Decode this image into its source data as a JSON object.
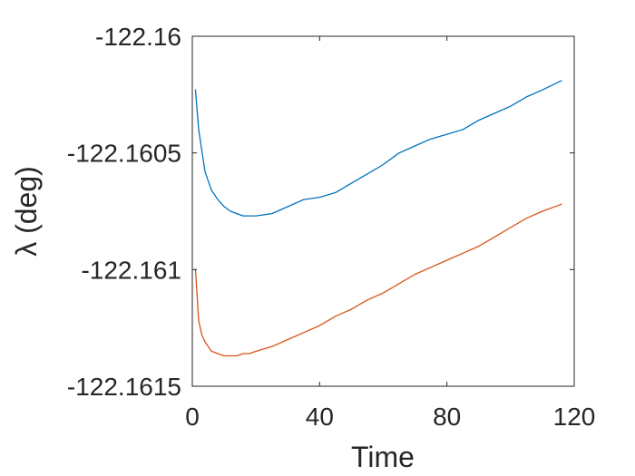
{
  "chart_data": {
    "type": "line",
    "title": "",
    "xlabel": "Time",
    "ylabel": "λ (deg)",
    "xlim": [
      0,
      120
    ],
    "ylim": [
      -122.1615,
      -122.16
    ],
    "x_ticks": [
      0,
      40,
      80,
      120
    ],
    "x_tick_labels": [
      "0",
      "40",
      "80",
      "120"
    ],
    "y_ticks": [
      -122.16,
      -122.1605,
      -122.161,
      -122.1615
    ],
    "y_tick_labels": [
      "-122.16",
      "-122.1605",
      "-122.161",
      "-122.1615"
    ],
    "grid": false,
    "legend": "none",
    "series": [
      {
        "color": "#0072BD",
        "x": [
          1,
          2,
          4,
          6,
          8,
          10,
          12,
          14,
          16,
          18,
          20,
          25,
          30,
          35,
          40,
          45,
          50,
          55,
          60,
          65,
          70,
          75,
          80,
          85,
          90,
          95,
          100,
          105,
          110,
          116
        ],
        "y": [
          -122.16023,
          -122.1604,
          -122.16058,
          -122.16066,
          -122.1607,
          -122.16073,
          -122.16075,
          -122.16076,
          -122.16077,
          -122.16077,
          -122.16077,
          -122.16076,
          -122.16073,
          -122.1607,
          -122.16069,
          -122.16067,
          -122.16063,
          -122.16059,
          -122.16055,
          -122.1605,
          -122.16047,
          -122.16044,
          -122.16042,
          -122.1604,
          -122.16036,
          -122.16033,
          -122.1603,
          -122.16026,
          -122.16023,
          -122.16019
        ]
      },
      {
        "color": "#D95319",
        "x": [
          1,
          2,
          3,
          4,
          6,
          8,
          10,
          12,
          14,
          16,
          18,
          20,
          25,
          30,
          35,
          40,
          45,
          50,
          55,
          60,
          65,
          70,
          75,
          80,
          85,
          90,
          95,
          100,
          105,
          110,
          116
        ],
        "y": [
          -122.161,
          -122.16122,
          -122.16128,
          -122.16131,
          -122.16135,
          -122.16136,
          -122.16137,
          -122.16137,
          -122.16137,
          -122.16136,
          -122.16136,
          -122.16135,
          -122.16133,
          -122.1613,
          -122.16127,
          -122.16124,
          -122.1612,
          -122.16117,
          -122.16113,
          -122.1611,
          -122.16106,
          -122.16102,
          -122.16099,
          -122.16096,
          -122.16093,
          -122.1609,
          -122.16086,
          -122.16082,
          -122.16078,
          -122.16075,
          -122.16072
        ]
      }
    ]
  }
}
